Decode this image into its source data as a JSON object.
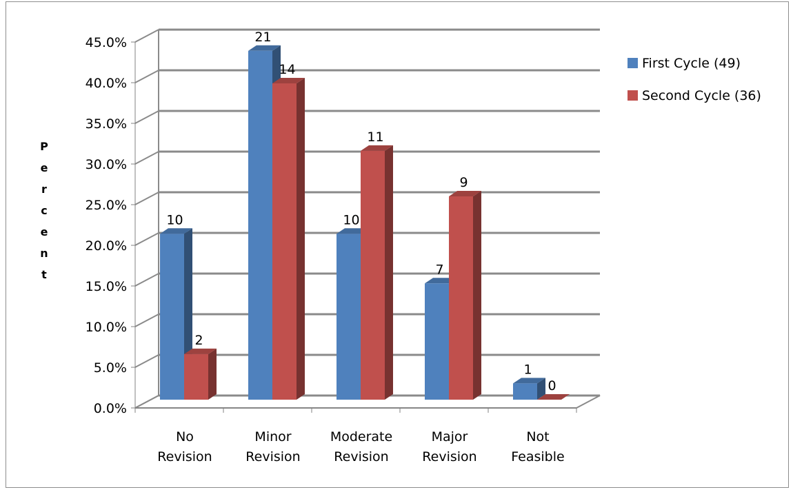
{
  "chart_data": {
    "type": "bar",
    "title": "",
    "xlabel": "",
    "ylabel": "Percent",
    "ylim": [
      0,
      45
    ],
    "yticks": [
      "0.0%",
      "5.0%",
      "10.0%",
      "15.0%",
      "20.0%",
      "25.0%",
      "30.0%",
      "35.0%",
      "40.0%",
      "45.0%"
    ],
    "categories": [
      "No Revision",
      "Minor Revision",
      "Moderate Revision",
      "Major Revision",
      "Not Feasible"
    ],
    "series": [
      {
        "name": "First Cycle (49)",
        "color": "#4f81bd",
        "values": [
          20.4,
          42.9,
          20.4,
          14.3,
          2.0
        ],
        "labels": [
          "10",
          "21",
          "10",
          "7",
          "1"
        ]
      },
      {
        "name": "Second Cycle (36)",
        "color": "#c0504d",
        "values": [
          5.6,
          38.9,
          30.6,
          25.0,
          0.0
        ],
        "labels": [
          "2",
          "14",
          "11",
          "9",
          "0"
        ]
      }
    ],
    "grid": true,
    "legend": "right",
    "style": "3d-clustered-column"
  }
}
